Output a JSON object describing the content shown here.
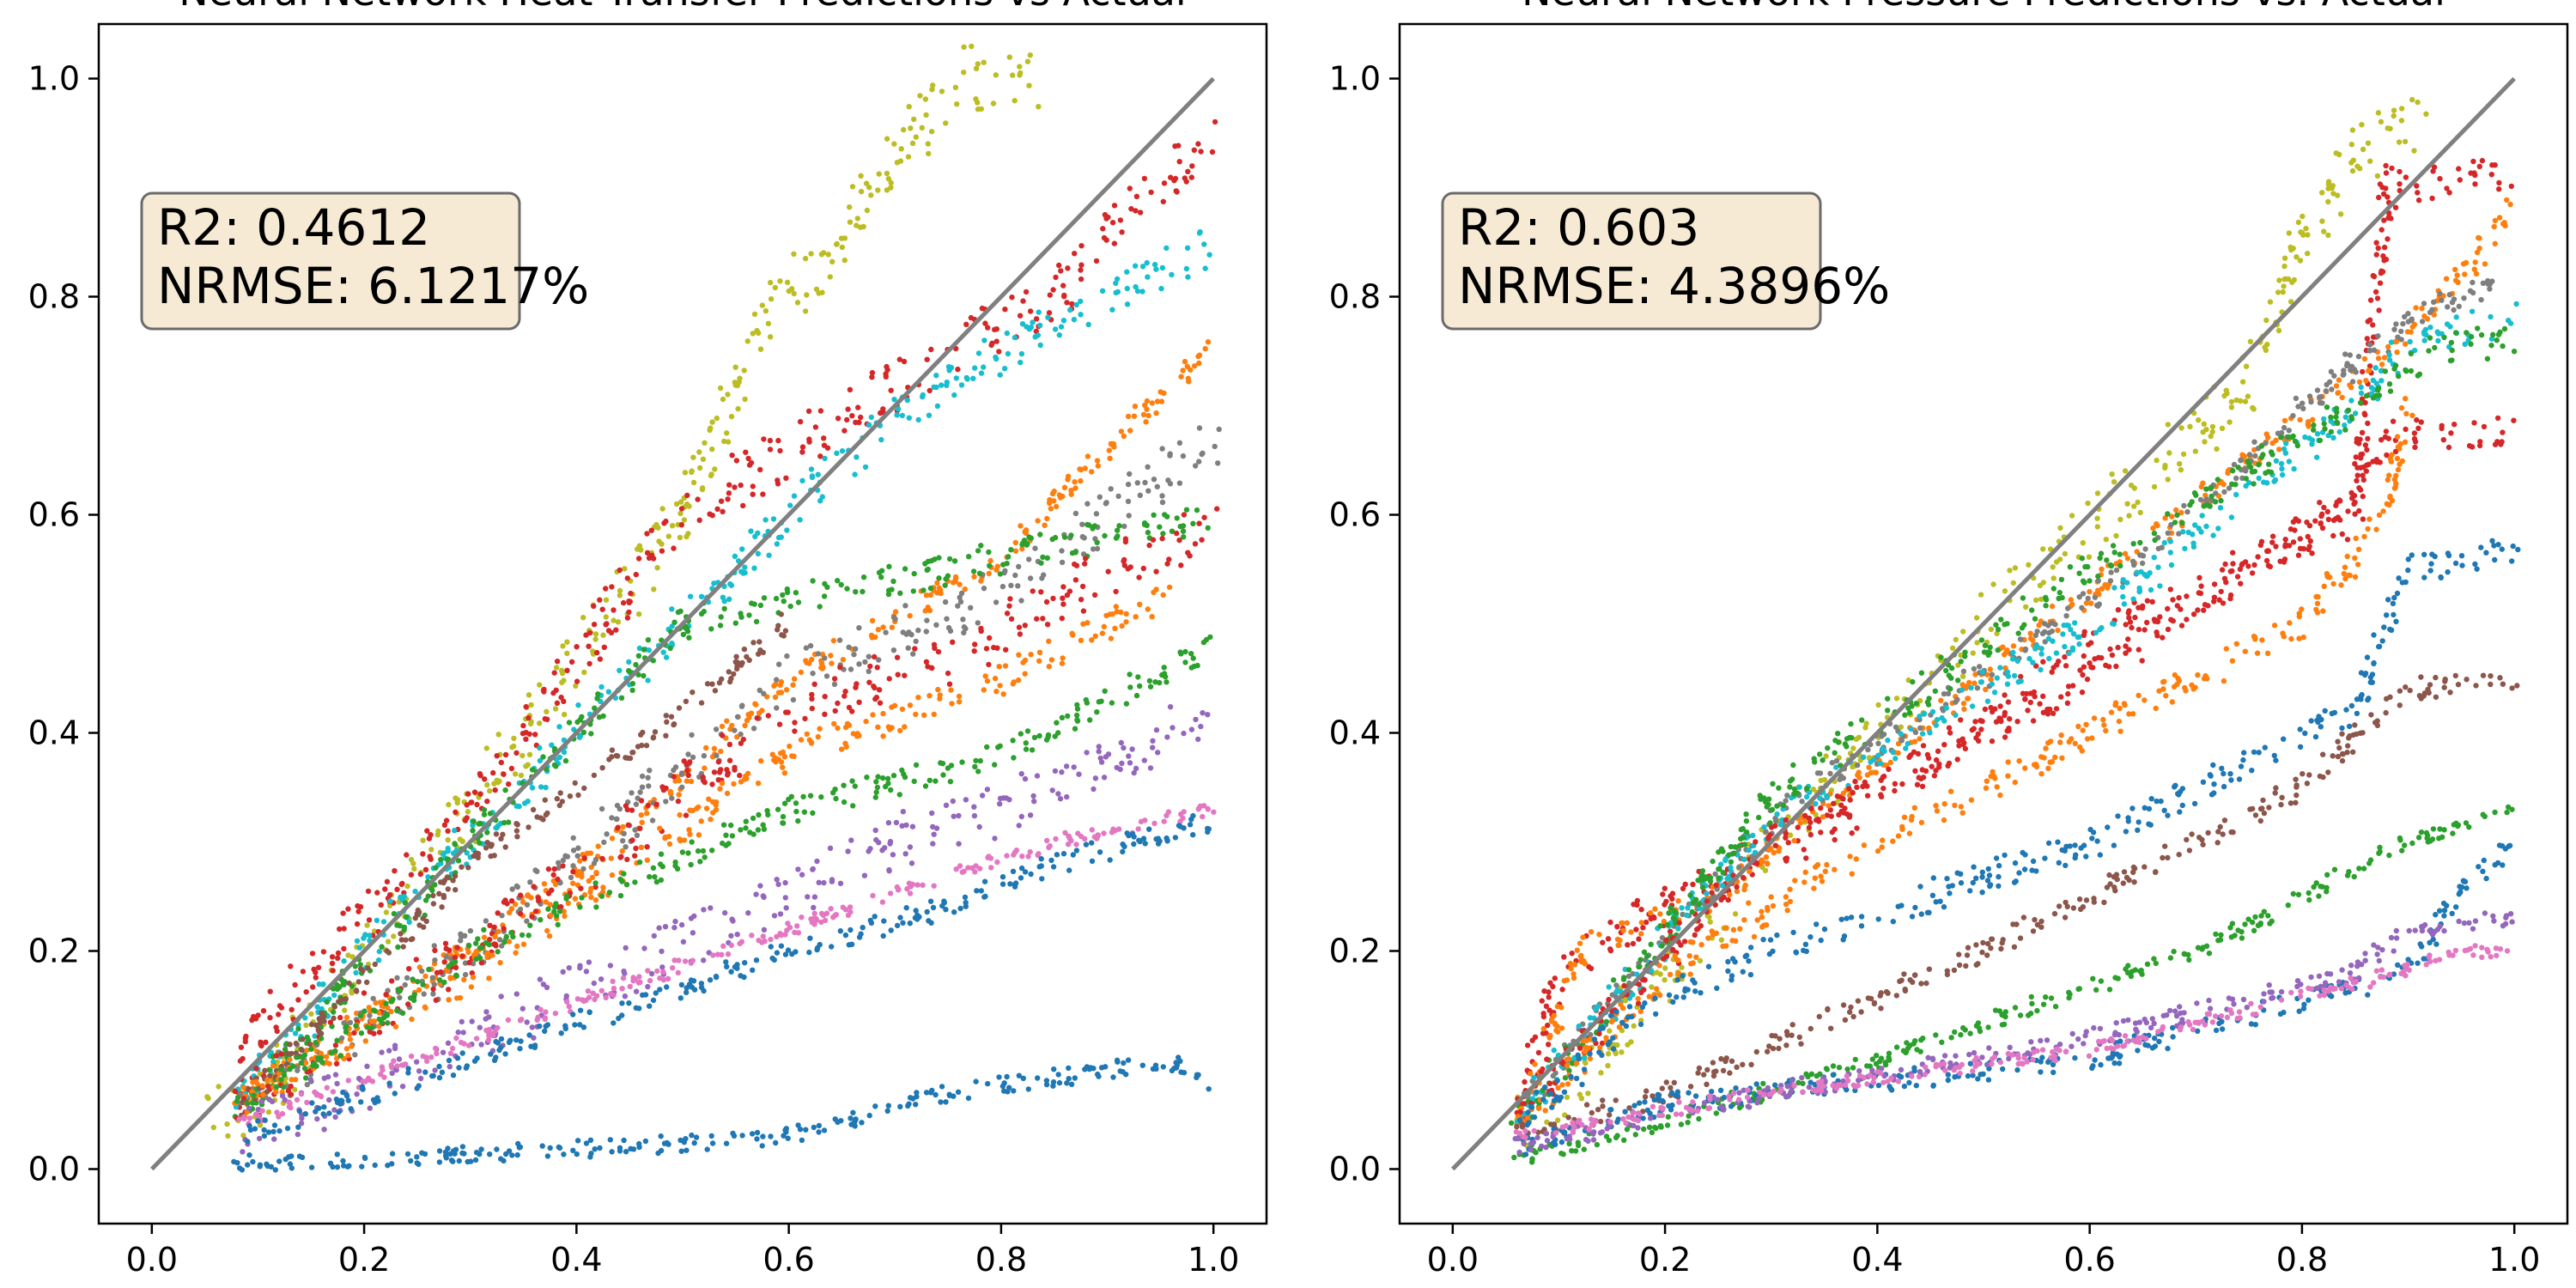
{
  "chart_data": [
    {
      "type": "scatter",
      "title": "Neural Network Heat Transfer Predictions vs Actual",
      "xlabel": "",
      "ylabel": "",
      "xlim": [
        -0.05,
        1.05
      ],
      "ylim": [
        -0.05,
        1.05
      ],
      "xticks": [
        "0.0",
        "0.2",
        "0.4",
        "0.6",
        "0.8",
        "1.0"
      ],
      "yticks": [
        "0.0",
        "0.2",
        "0.4",
        "0.6",
        "0.8",
        "1.0"
      ],
      "grid": false,
      "reference_line": {
        "x": [
          0,
          1
        ],
        "y": [
          0,
          1
        ],
        "color": "#808080"
      },
      "annotation": {
        "lines": [
          "R2: 0.4612",
          "NRMSE: 6.1217%"
        ],
        "placement": "upper-left"
      },
      "series": [
        {
          "color": "#bcbd22",
          "trend": [
            [
              0.05,
              0.05
            ],
            [
              0.1,
              0.06
            ],
            [
              0.3,
              0.33
            ],
            [
              0.5,
              0.6
            ],
            [
              0.58,
              0.78
            ],
            [
              0.65,
              0.85
            ],
            [
              0.7,
              0.93
            ],
            [
              0.76,
              1.0
            ],
            [
              0.84,
              1.0
            ]
          ],
          "noise": 0.03
        },
        {
          "color": "#d62728",
          "trend": [
            [
              0.08,
              0.06
            ],
            [
              0.1,
              0.13
            ],
            [
              0.3,
              0.33
            ],
            [
              0.5,
              0.6
            ],
            [
              0.75,
              0.75
            ],
            [
              0.85,
              0.8
            ],
            [
              0.92,
              0.88
            ],
            [
              1.0,
              0.94
            ]
          ],
          "noise": 0.025
        },
        {
          "color": "#17becf",
          "trend": [
            [
              0.08,
              0.06
            ],
            [
              0.2,
              0.2
            ],
            [
              0.5,
              0.5
            ],
            [
              0.65,
              0.65
            ],
            [
              0.75,
              0.72
            ],
            [
              0.9,
              0.8
            ],
            [
              1.0,
              0.85
            ]
          ],
          "noise": 0.02
        },
        {
          "color": "#ff7f0e",
          "trend": [
            [
              0.08,
              0.06
            ],
            [
              0.2,
              0.14
            ],
            [
              0.4,
              0.27
            ],
            [
              0.6,
              0.45
            ],
            [
              0.8,
              0.56
            ],
            [
              0.9,
              0.66
            ],
            [
              1.0,
              0.76
            ]
          ],
          "noise": 0.01
        },
        {
          "color": "#7f7f7f",
          "trend": [
            [
              0.08,
              0.06
            ],
            [
              0.3,
              0.2
            ],
            [
              0.6,
              0.45
            ],
            [
              0.78,
              0.52
            ],
            [
              0.9,
              0.6
            ],
            [
              1.0,
              0.67
            ]
          ],
          "noise": 0.025
        },
        {
          "color": "#2ca02c",
          "trend": [
            [
              0.08,
              0.05
            ],
            [
              0.3,
              0.3
            ],
            [
              0.5,
              0.5
            ],
            [
              0.65,
              0.53
            ],
            [
              0.8,
              0.56
            ],
            [
              1.0,
              0.6
            ]
          ],
          "noise": 0.015
        },
        {
          "color": "#d62728",
          "trend": [
            [
              0.08,
              0.06
            ],
            [
              0.3,
              0.2
            ],
            [
              0.6,
              0.42
            ],
            [
              0.78,
              0.48
            ],
            [
              0.9,
              0.55
            ],
            [
              1.0,
              0.59
            ]
          ],
          "noise": 0.025
        },
        {
          "color": "#8c564b",
          "trend": [
            [
              0.08,
              0.05
            ],
            [
              0.3,
              0.28
            ],
            [
              0.5,
              0.42
            ],
            [
              0.6,
              0.5
            ]
          ],
          "noise": 0.01
        },
        {
          "color": "#ff7f0e",
          "trend": [
            [
              0.08,
              0.06
            ],
            [
              0.3,
              0.18
            ],
            [
              0.6,
              0.38
            ],
            [
              0.78,
              0.44
            ],
            [
              0.9,
              0.5
            ],
            [
              0.96,
              0.53
            ]
          ],
          "noise": 0.015
        },
        {
          "color": "#2ca02c",
          "trend": [
            [
              0.08,
              0.05
            ],
            [
              0.3,
              0.2
            ],
            [
              0.6,
              0.33
            ],
            [
              0.8,
              0.38
            ],
            [
              0.9,
              0.43
            ],
            [
              1.0,
              0.48
            ]
          ],
          "noise": 0.012
        },
        {
          "color": "#9467bd",
          "trend": [
            [
              0.08,
              0.03
            ],
            [
              0.3,
              0.12
            ],
            [
              0.6,
              0.25
            ],
            [
              0.7,
              0.3
            ],
            [
              0.8,
              0.33
            ],
            [
              0.9,
              0.37
            ],
            [
              1.0,
              0.42
            ]
          ],
          "noise": 0.025
        },
        {
          "color": "#e377c2",
          "trend": [
            [
              0.08,
              0.04
            ],
            [
              0.3,
              0.12
            ],
            [
              0.6,
              0.22
            ],
            [
              0.75,
              0.27
            ],
            [
              0.85,
              0.3
            ],
            [
              1.0,
              0.33
            ]
          ],
          "noise": 0.006
        },
        {
          "color": "#1f77b4",
          "trend": [
            [
              0.08,
              0.03
            ],
            [
              0.3,
              0.1
            ],
            [
              0.6,
              0.2
            ],
            [
              0.75,
              0.24
            ],
            [
              0.85,
              0.28
            ],
            [
              1.0,
              0.32
            ]
          ],
          "noise": 0.01
        },
        {
          "color": "#1f77b4",
          "trend": [
            [
              0.08,
              0.005
            ],
            [
              0.2,
              0.01
            ],
            [
              0.4,
              0.018
            ],
            [
              0.6,
              0.03
            ],
            [
              0.75,
              0.07
            ],
            [
              0.9,
              0.09
            ],
            [
              0.95,
              0.1
            ],
            [
              1.0,
              0.08
            ]
          ],
          "noise": 0.008
        }
      ]
    },
    {
      "type": "scatter",
      "title": "Neural Network Pressure Predictions vs. Actual",
      "xlabel": "",
      "ylabel": "",
      "xlim": [
        -0.05,
        1.05
      ],
      "ylim": [
        -0.05,
        1.05
      ],
      "xticks": [
        "0.0",
        "0.2",
        "0.4",
        "0.6",
        "0.8",
        "1.0"
      ],
      "yticks": [
        "0.0",
        "0.2",
        "0.4",
        "0.6",
        "0.8",
        "1.0"
      ],
      "grid": false,
      "reference_line": {
        "x": [
          0,
          1
        ],
        "y": [
          0,
          1
        ],
        "color": "#808080"
      },
      "annotation": {
        "lines": [
          "R2: 0.603",
          "NRMSE: 4.3896%"
        ],
        "placement": "upper-left"
      },
      "series": [
        {
          "color": "#bcbd22",
          "trend": [
            [
              0.06,
              0.04
            ],
            [
              0.1,
              0.06
            ],
            [
              0.3,
              0.3
            ],
            [
              0.5,
              0.5
            ],
            [
              0.75,
              0.72
            ],
            [
              0.8,
              0.85
            ],
            [
              0.85,
              0.93
            ],
            [
              0.92,
              0.97
            ]
          ],
          "noise": 0.03
        },
        {
          "color": "#d62728",
          "trend": [
            [
              0.06,
              0.05
            ],
            [
              0.1,
              0.18
            ],
            [
              0.2,
              0.24
            ],
            [
              0.4,
              0.34
            ],
            [
              0.6,
              0.48
            ],
            [
              0.85,
              0.6
            ],
            [
              0.88,
              0.9
            ],
            [
              1.0,
              0.92
            ]
          ],
          "noise": 0.02
        },
        {
          "color": "#ff7f0e",
          "trend": [
            [
              0.06,
              0.04
            ],
            [
              0.12,
              0.2
            ],
            [
              0.25,
              0.25
            ],
            [
              0.5,
              0.45
            ],
            [
              0.75,
              0.65
            ],
            [
              0.88,
              0.75
            ],
            [
              0.95,
              0.82
            ],
            [
              1.0,
              0.88
            ]
          ],
          "noise": 0.012
        },
        {
          "color": "#7f7f7f",
          "trend": [
            [
              0.06,
              0.05
            ],
            [
              0.3,
              0.32
            ],
            [
              0.6,
              0.52
            ],
            [
              0.85,
              0.74
            ],
            [
              0.92,
              0.79
            ],
            [
              1.0,
              0.82
            ]
          ],
          "noise": 0.012
        },
        {
          "color": "#17becf",
          "trend": [
            [
              0.06,
              0.05
            ],
            [
              0.3,
              0.32
            ],
            [
              0.6,
              0.5
            ],
            [
              0.85,
              0.7
            ],
            [
              0.9,
              0.76
            ],
            [
              1.0,
              0.78
            ]
          ],
          "noise": 0.015
        },
        {
          "color": "#2ca02c",
          "trend": [
            [
              0.06,
              0.04
            ],
            [
              0.3,
              0.34
            ],
            [
              0.6,
              0.55
            ],
            [
              0.85,
              0.7
            ],
            [
              0.92,
              0.75
            ],
            [
              1.0,
              0.76
            ]
          ],
          "noise": 0.015
        },
        {
          "color": "#d62728",
          "trend": [
            [
              0.06,
              0.05
            ],
            [
              0.3,
              0.3
            ],
            [
              0.6,
              0.45
            ],
            [
              0.85,
              0.62
            ],
            [
              0.88,
              0.67
            ],
            [
              1.0,
              0.68
            ]
          ],
          "noise": 0.015
        },
        {
          "color": "#ff7f0e",
          "trend": [
            [
              0.06,
              0.04
            ],
            [
              0.2,
              0.18
            ],
            [
              0.4,
              0.3
            ],
            [
              0.6,
              0.4
            ],
            [
              0.8,
              0.5
            ],
            [
              0.88,
              0.6
            ],
            [
              0.9,
              0.7
            ]
          ],
          "noise": 0.015
        },
        {
          "color": "#1f77b4",
          "trend": [
            [
              0.06,
              0.03
            ],
            [
              0.15,
              0.13
            ],
            [
              0.3,
              0.2
            ],
            [
              0.6,
              0.3
            ],
            [
              0.85,
              0.42
            ],
            [
              0.9,
              0.55
            ],
            [
              1.0,
              0.57
            ]
          ],
          "noise": 0.015
        },
        {
          "color": "#8c564b",
          "trend": [
            [
              0.06,
              0.03
            ],
            [
              0.2,
              0.07
            ],
            [
              0.5,
              0.2
            ],
            [
              0.8,
              0.35
            ],
            [
              0.9,
              0.44
            ],
            [
              1.0,
              0.45
            ]
          ],
          "noise": 0.01
        },
        {
          "color": "#2ca02c",
          "trend": [
            [
              0.06,
              0.01
            ],
            [
              0.15,
              0.03
            ],
            [
              0.4,
              0.1
            ],
            [
              0.7,
              0.2
            ],
            [
              0.9,
              0.3
            ],
            [
              1.0,
              0.33
            ]
          ],
          "noise": 0.008
        },
        {
          "color": "#1f77b4",
          "trend": [
            [
              0.06,
              0.02
            ],
            [
              0.2,
              0.06
            ],
            [
              0.6,
              0.1
            ],
            [
              0.9,
              0.18
            ],
            [
              0.95,
              0.26
            ],
            [
              1.0,
              0.3
            ]
          ],
          "noise": 0.01
        },
        {
          "color": "#9467bd",
          "trend": [
            [
              0.06,
              0.02
            ],
            [
              0.3,
              0.07
            ],
            [
              0.6,
              0.12
            ],
            [
              0.85,
              0.18
            ],
            [
              0.9,
              0.22
            ],
            [
              1.0,
              0.23
            ]
          ],
          "noise": 0.008
        },
        {
          "color": "#e377c2",
          "trend": [
            [
              0.06,
              0.03
            ],
            [
              0.3,
              0.07
            ],
            [
              0.6,
              0.11
            ],
            [
              0.85,
              0.17
            ],
            [
              0.95,
              0.2
            ],
            [
              1.0,
              0.2
            ]
          ],
          "noise": 0.006
        }
      ]
    }
  ]
}
